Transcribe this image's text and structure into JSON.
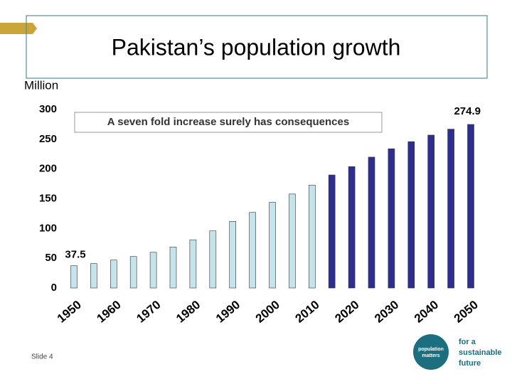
{
  "chart_data": {
    "type": "bar",
    "title": "Pakistan’s population growth",
    "y_label": "Million",
    "annotation": "A seven fold increase surely has consequences",
    "categories": [
      "1950",
      null,
      "1960",
      null,
      "1970",
      null,
      "1980",
      null,
      "1990",
      null,
      "2000",
      null,
      "2010",
      null,
      "2020",
      null,
      "2030",
      null,
      "2040",
      null,
      "2050"
    ],
    "values": [
      37.5,
      41,
      47,
      53,
      60,
      69,
      81,
      96,
      112,
      127,
      144,
      158,
      173,
      190,
      204,
      220,
      234,
      246,
      257,
      267,
      274.9
    ],
    "value_labels": [
      "37.5",
      null,
      null,
      null,
      null,
      null,
      null,
      null,
      null,
      null,
      null,
      null,
      null,
      null,
      null,
      null,
      null,
      null,
      null,
      null,
      "274.9"
    ],
    "colors": [
      "#c5e3ea",
      "#c5e3ea",
      "#c5e3ea",
      "#c5e3ea",
      "#c5e3ea",
      "#c5e3ea",
      "#c5e3ea",
      "#c5e3ea",
      "#c5e3ea",
      "#c5e3ea",
      "#c5e3ea",
      "#c5e3ea",
      "#c5e3ea",
      "#2e2e8f",
      "#2e2e8f",
      "#2e2e8f",
      "#2e2e8f",
      "#2e2e8f",
      "#2e2e8f",
      "#2e2e8f",
      "#2e2e8f"
    ],
    "ylim": [
      0,
      300
    ],
    "yticks": [
      0,
      50,
      100,
      150,
      200,
      250,
      300
    ],
    "grid": false
  },
  "footer": {
    "slide": "Slide 4",
    "logo": [
      "population",
      "matters"
    ],
    "tagline": [
      "for a",
      "sustainable",
      "future"
    ]
  }
}
